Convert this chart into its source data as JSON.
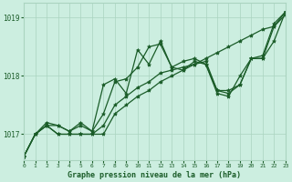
{
  "bg_color": "#cceee0",
  "grid_color": "#aad4c0",
  "line_color": "#1a5c28",
  "title": "Graphe pression niveau de la mer (hPa)",
  "xlim": [
    0,
    23
  ],
  "ylim": [
    1016.55,
    1019.25
  ],
  "yticks": [
    1017,
    1018,
    1019
  ],
  "xticks": [
    0,
    1,
    2,
    3,
    4,
    5,
    6,
    7,
    8,
    9,
    10,
    11,
    12,
    13,
    14,
    15,
    16,
    17,
    18,
    19,
    20,
    21,
    22,
    23
  ],
  "series": [
    [
      1016.62,
      1017.0,
      1017.15,
      1017.0,
      1017.0,
      1017.0,
      1017.0,
      1017.0,
      1017.35,
      1017.5,
      1017.65,
      1017.75,
      1017.9,
      1018.0,
      1018.1,
      1018.2,
      1018.3,
      1018.4,
      1018.5,
      1018.6,
      1018.7,
      1018.8,
      1018.85,
      1019.1
    ],
    [
      1016.62,
      1017.0,
      1017.15,
      1017.0,
      1017.0,
      1017.0,
      1017.0,
      1017.15,
      1017.5,
      1017.65,
      1017.8,
      1017.9,
      1018.05,
      1018.1,
      1018.15,
      1018.2,
      1018.25,
      1017.75,
      1017.75,
      1017.85,
      1018.3,
      1018.3,
      1018.85,
      1019.05
    ],
    [
      1016.62,
      1017.0,
      1017.15,
      1017.15,
      1017.05,
      1017.2,
      1017.05,
      1017.85,
      1017.95,
      1017.7,
      1018.45,
      1018.2,
      1018.6,
      1018.15,
      1018.1,
      1018.25,
      1018.2,
      1017.7,
      1017.65,
      1018.0,
      1018.3,
      1018.3,
      1018.6,
      1019.1
    ],
    [
      1016.62,
      1017.0,
      1017.2,
      1017.15,
      1017.05,
      1017.15,
      1017.05,
      1017.35,
      1017.9,
      1017.95,
      1018.15,
      1018.5,
      1018.55,
      1018.15,
      1018.25,
      1018.3,
      1018.2,
      1017.75,
      1017.7,
      1017.85,
      1018.3,
      1018.35,
      1018.9,
      1019.1
    ]
  ]
}
